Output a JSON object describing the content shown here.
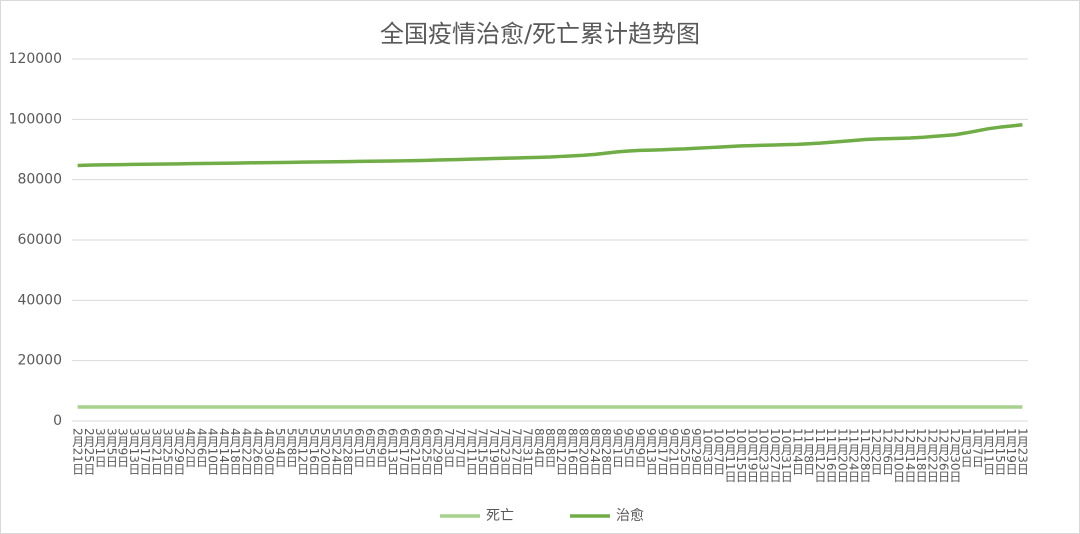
{
  "chart_data": {
    "type": "line",
    "title": "全国疫情治愈/死亡累计趋势图",
    "categories": [
      "2月21日",
      "2月25日",
      "3月1日",
      "3月5日",
      "3月9日",
      "3月13日",
      "3月17日",
      "3月21日",
      "3月25日",
      "3月29日",
      "4月2日",
      "4月6日",
      "4月10日",
      "4月14日",
      "4月18日",
      "4月22日",
      "4月26日",
      "4月30日",
      "5月4日",
      "5月8日",
      "5月12日",
      "5月16日",
      "5月20日",
      "5月24日",
      "5月28日",
      "6月1日",
      "6月5日",
      "6月9日",
      "6月13日",
      "6月17日",
      "6月21日",
      "6月25日",
      "6月29日",
      "7月3日",
      "7月7日",
      "7月11日",
      "7月15日",
      "7月19日",
      "7月23日",
      "7月27日",
      "7月31日",
      "8月4日",
      "8月8日",
      "8月12日",
      "8月16日",
      "8月20日",
      "8月24日",
      "8月28日",
      "9月1日",
      "9月5日",
      "9月9日",
      "9月13日",
      "9月17日",
      "9月21日",
      "9月25日",
      "9月29日",
      "10月3日",
      "10月7日",
      "10月11日",
      "10月15日",
      "10月19日",
      "10月23日",
      "10月27日",
      "10月31日",
      "11月4日",
      "11月8日",
      "11月12日",
      "11月16日",
      "11月20日",
      "11月24日",
      "11月28日",
      "12月2日",
      "12月6日",
      "12月10日",
      "12月14日",
      "12月18日",
      "12月22日",
      "12月26日",
      "12月30日",
      "1月3日",
      "1月7日",
      "1月11日",
      "1月15日",
      "1月19日",
      "1月23日"
    ],
    "series": [
      {
        "name": "死亡",
        "color": "#a9d18e",
        "values": [
          4636,
          4636,
          4636,
          4636,
          4636,
          4636,
          4636,
          4636,
          4636,
          4636,
          4636,
          4636,
          4636,
          4636,
          4636,
          4636,
          4636,
          4636,
          4636,
          4636,
          4636,
          4636,
          4636,
          4636,
          4636,
          4636,
          4636,
          4636,
          4636,
          4636,
          4636,
          4636,
          4636,
          4636,
          4636,
          4636,
          4636,
          4636,
          4636,
          4636,
          4636,
          4636,
          4636,
          4636,
          4636,
          4636,
          4636,
          4636,
          4636,
          4636,
          4636,
          4636,
          4636,
          4636,
          4636,
          4636,
          4636,
          4636,
          4636,
          4636,
          4636,
          4636,
          4636,
          4636,
          4636,
          4636,
          4636,
          4636,
          4636,
          4636,
          4636,
          4636,
          4636,
          4636,
          4636,
          4636,
          4636,
          4636,
          4636,
          4636,
          4636,
          4636,
          4636,
          4636,
          4636
        ]
      },
      {
        "name": "治愈",
        "color": "#70ad47",
        "values": [
          84700,
          84800,
          84900,
          84950,
          85000,
          85050,
          85100,
          85150,
          85200,
          85250,
          85300,
          85350,
          85400,
          85450,
          85500,
          85550,
          85600,
          85650,
          85700,
          85750,
          85800,
          85850,
          85900,
          85950,
          86000,
          86050,
          86100,
          86150,
          86200,
          86250,
          86300,
          86400,
          86500,
          86600,
          86700,
          86800,
          86900,
          87000,
          87100,
          87200,
          87300,
          87400,
          87500,
          87700,
          87900,
          88100,
          88400,
          88800,
          89200,
          89500,
          89700,
          89800,
          89900,
          90100,
          90200,
          90400,
          90600,
          90800,
          91000,
          91200,
          91300,
          91400,
          91500,
          91600,
          91700,
          91900,
          92100,
          92400,
          92700,
          93000,
          93300,
          93500,
          93600,
          93700,
          93800,
          94000,
          94300,
          94600,
          94900,
          95500,
          96200,
          96900,
          97400,
          97800,
          98200
        ]
      }
    ],
    "ylim": [
      0,
      120000
    ],
    "yticks": [
      0,
      20000,
      40000,
      60000,
      80000,
      100000,
      120000
    ],
    "grid": true,
    "legend": "bottom"
  }
}
